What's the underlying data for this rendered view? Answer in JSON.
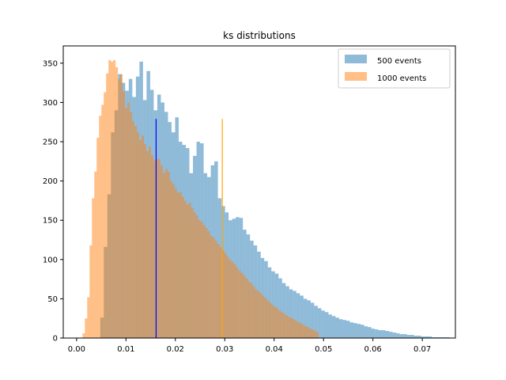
{
  "chart_data": {
    "type": "histogram",
    "title": "ks distributions",
    "xlabel": "",
    "ylabel": "",
    "xlim": [
      -0.0027,
      0.0767
    ],
    "ylim": [
      0,
      372
    ],
    "xticks": [
      0.0,
      0.01,
      0.02,
      0.03,
      0.04,
      0.05,
      0.06,
      0.07
    ],
    "xtick_labels": [
      "0.00",
      "0.01",
      "0.02",
      "0.03",
      "0.04",
      "0.05",
      "0.06",
      "0.07"
    ],
    "yticks": [
      0,
      50,
      100,
      150,
      200,
      250,
      300,
      350
    ],
    "ytick_labels": [
      "0",
      "50",
      "100",
      "150",
      "200",
      "250",
      "300",
      "350"
    ],
    "legend_position": "top-right",
    "series": [
      {
        "name": "500 events",
        "color": "#1f77b4",
        "alpha": 0.5,
        "x_start": 0.0019,
        "bin_width": 0.000722,
        "values": [
          0,
          0,
          0,
          0,
          26,
          116,
          183,
          262,
          290,
          336,
          325,
          315,
          330,
          307,
          333,
          352,
          303,
          340,
          316,
          290,
          310,
          300,
          288,
          275,
          262,
          281,
          250,
          246,
          242,
          210,
          232,
          250,
          248,
          210,
          205,
          220,
          225,
          178,
          168,
          160,
          150,
          152,
          154,
          153,
          138,
          132,
          124,
          118,
          110,
          102,
          98,
          90,
          85,
          82,
          76,
          70,
          66,
          62,
          60,
          57,
          54,
          50,
          48,
          45,
          41,
          38,
          35,
          33,
          30,
          28,
          26,
          24,
          23,
          22,
          20,
          19,
          18,
          17,
          15,
          14,
          12,
          11,
          10,
          10,
          9,
          8,
          7,
          6,
          5,
          5,
          4,
          4,
          3,
          3,
          2,
          2,
          2,
          1,
          1,
          1,
          1,
          1
        ]
      },
      {
        "name": "1000 events",
        "color": "#ff7f0e",
        "alpha": 0.5,
        "x_start": 0.0012,
        "bin_width": 0.000478,
        "values": [
          6,
          25,
          52,
          118,
          178,
          212,
          255,
          283,
          297,
          313,
          337,
          354,
          352,
          354,
          345,
          330,
          336,
          314,
          293,
          300,
          288,
          276,
          270,
          262,
          252,
          258,
          247,
          238,
          244,
          233,
          226,
          228,
          228,
          220,
          210,
          215,
          212,
          200,
          196,
          190,
          185,
          186,
          180,
          175,
          170,
          172,
          166,
          160,
          156,
          150,
          148,
          144,
          140,
          136,
          130,
          128,
          124,
          120,
          116,
          112,
          108,
          104,
          100,
          97,
          94,
          90,
          86,
          83,
          80,
          76,
          72,
          70,
          66,
          62,
          60,
          57,
          54,
          51,
          48,
          45,
          42,
          40,
          38,
          35,
          33,
          31,
          29,
          27,
          26,
          24,
          22,
          20,
          19,
          17,
          15,
          14,
          12,
          11,
          9,
          8
        ]
      }
    ],
    "vlines": [
      {
        "x": 0.0161,
        "y_top": 279,
        "color": "#0000ff"
      },
      {
        "x": 0.0295,
        "y_top": 279,
        "color": "#ffa500"
      }
    ]
  }
}
